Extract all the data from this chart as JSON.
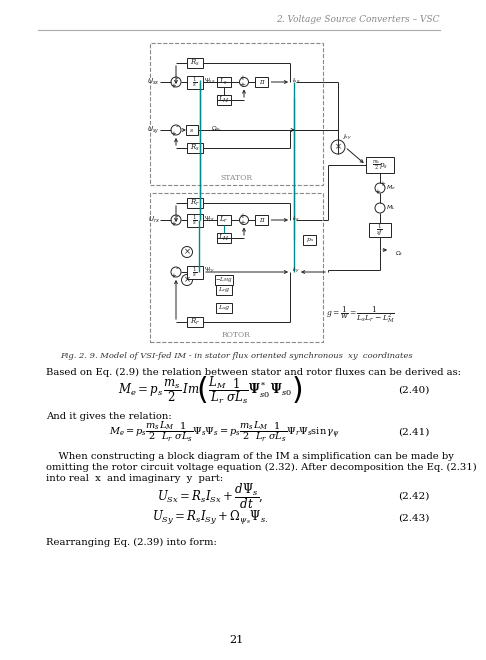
{
  "header_text": "2. Voltage Source Converters – VSC",
  "fig_caption": "Fig. 2. 9. Model of VSI-fed IM - in stator flux oriented synchronous  xy  coordinates",
  "para1": "Based on Eq. (2.9) the relation between stator and rotor fluxes can be derived as:",
  "eq240_label": "(2.40)",
  "para2": "And it gives the relation:",
  "eq241_label": "(2.41)",
  "para3_line1": "    When constructing a block diagram of the IM a simplification can be made by",
  "para3_line2": "omitting the rotor circuit voltage equation (2.32). After decomposition the Eq. (2.31)",
  "para3_line3": "into real  x  and imaginary  y  part:",
  "eq242_label": "(2.42)",
  "eq243_label": "(2.43)",
  "para4": "Rearranging Eq. (2.39) into form:",
  "page_num": "21",
  "bg_color": "#ffffff",
  "text_color": "#000000",
  "box_color": "#222222",
  "teal_color": "#008B8B",
  "dash_color": "#888888"
}
